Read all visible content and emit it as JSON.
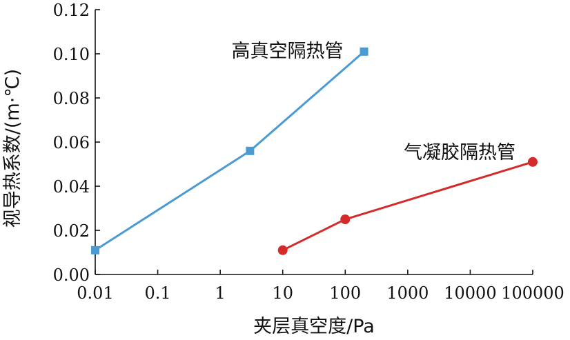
{
  "chart_data": {
    "type": "line",
    "xscale": "log",
    "xlabel": "夹层真空度/Pa",
    "ylabel": "视导热系数/(m·℃)",
    "xlim": [
      0.01,
      100000
    ],
    "ylim": [
      0.0,
      0.12
    ],
    "xticks": [
      0.01,
      0.1,
      1,
      10,
      100,
      1000,
      10000,
      100000
    ],
    "xtick_labels": [
      "0.01",
      "0.1",
      "1",
      "10",
      "100",
      "1000",
      "10000",
      "100000"
    ],
    "yticks": [
      0.0,
      0.02,
      0.04,
      0.06,
      0.08,
      0.1,
      0.12
    ],
    "ytick_labels": [
      "0.00",
      "0.02",
      "0.04",
      "0.06",
      "0.08",
      "0.10",
      "0.12"
    ],
    "grid": false,
    "series": [
      {
        "name": "高真空隔热管",
        "color": "#4a9ad4",
        "marker": "square",
        "x": [
          0.01,
          3,
          200
        ],
        "y": [
          0.011,
          0.056,
          0.101
        ]
      },
      {
        "name": "气凝胶隔热管",
        "color": "#d42a2a",
        "marker": "circle",
        "x": [
          10,
          100,
          100000
        ],
        "y": [
          0.011,
          0.025,
          0.051
        ]
      }
    ]
  }
}
